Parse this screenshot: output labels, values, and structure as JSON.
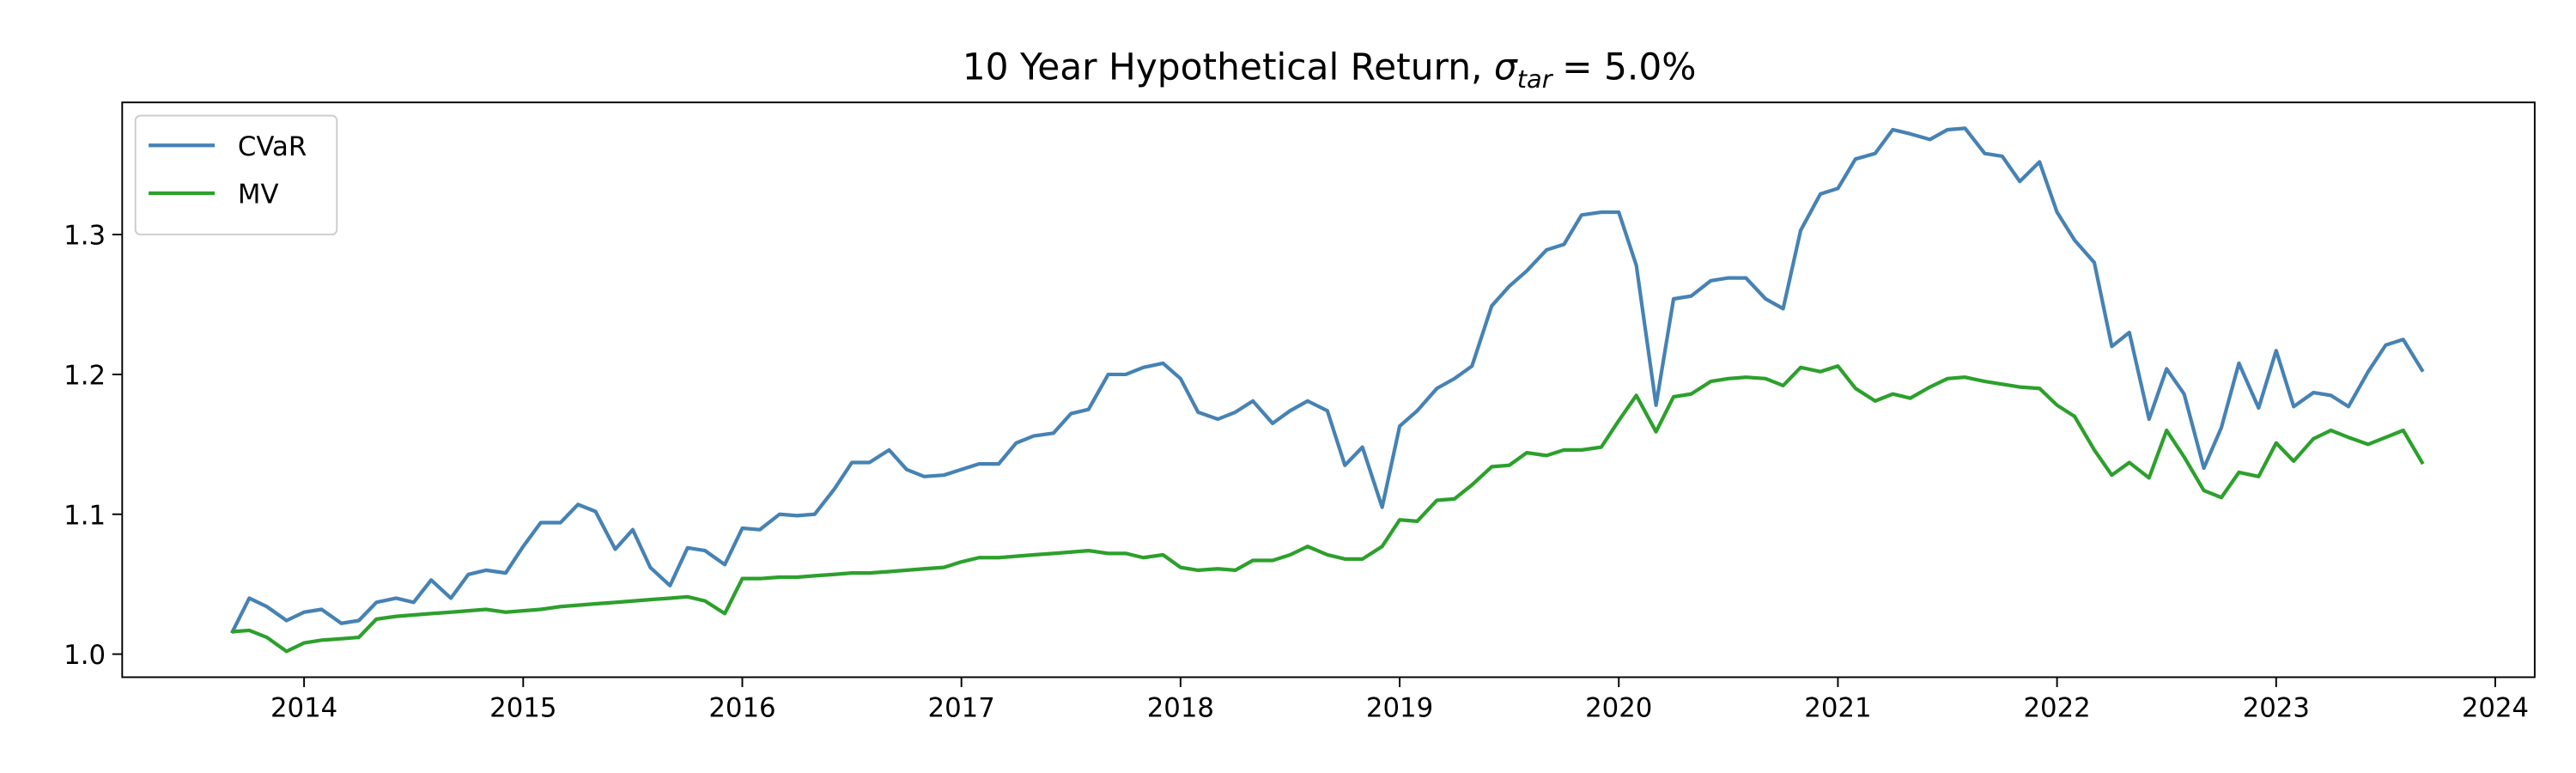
{
  "chart_data": {
    "type": "line",
    "title": {
      "text": "10 Year Hypothetical Return,",
      "symbol": "σ",
      "subscript": "tar",
      "suffix": "= 5.0%"
    },
    "x": [
      2013.67,
      2013.75,
      2013.83,
      2013.92,
      2014.0,
      2014.08,
      2014.17,
      2014.25,
      2014.33,
      2014.42,
      2014.5,
      2014.58,
      2014.67,
      2014.75,
      2014.83,
      2014.92,
      2015.0,
      2015.08,
      2015.17,
      2015.25,
      2015.33,
      2015.42,
      2015.5,
      2015.58,
      2015.67,
      2015.75,
      2015.83,
      2015.92,
      2016.0,
      2016.08,
      2016.17,
      2016.25,
      2016.33,
      2016.42,
      2016.5,
      2016.58,
      2016.67,
      2016.75,
      2016.83,
      2016.92,
      2017.0,
      2017.08,
      2017.17,
      2017.25,
      2017.33,
      2017.42,
      2017.5,
      2017.58,
      2017.67,
      2017.75,
      2017.83,
      2017.92,
      2018.0,
      2018.08,
      2018.17,
      2018.25,
      2018.33,
      2018.42,
      2018.5,
      2018.58,
      2018.67,
      2018.75,
      2018.83,
      2018.92,
      2019.0,
      2019.08,
      2019.17,
      2019.25,
      2019.33,
      2019.42,
      2019.5,
      2019.58,
      2019.67,
      2019.75,
      2019.83,
      2019.92,
      2020.0,
      2020.08,
      2020.17,
      2020.25,
      2020.33,
      2020.42,
      2020.5,
      2020.58,
      2020.67,
      2020.75,
      2020.83,
      2020.92,
      2021.0,
      2021.08,
      2021.17,
      2021.25,
      2021.33,
      2021.42,
      2021.5,
      2021.58,
      2021.67,
      2021.75,
      2021.83,
      2021.92,
      2022.0,
      2022.08,
      2022.17,
      2022.25,
      2022.33,
      2022.42,
      2022.5,
      2022.58,
      2022.67,
      2022.75,
      2022.83,
      2022.92,
      2023.0,
      2023.08,
      2023.17,
      2023.25,
      2023.33,
      2023.42,
      2023.5,
      2023.58,
      2023.67
    ],
    "series": [
      {
        "name": "CVaR",
        "color": "#4682b4",
        "values": [
          1.015,
          1.04,
          1.034,
          1.024,
          1.03,
          1.032,
          1.022,
          1.024,
          1.037,
          1.04,
          1.037,
          1.053,
          1.04,
          1.057,
          1.06,
          1.058,
          1.077,
          1.094,
          1.094,
          1.107,
          1.102,
          1.075,
          1.089,
          1.062,
          1.049,
          1.076,
          1.074,
          1.064,
          1.09,
          1.089,
          1.1,
          1.099,
          1.1,
          1.118,
          1.137,
          1.137,
          1.146,
          1.132,
          1.127,
          1.128,
          1.132,
          1.136,
          1.136,
          1.151,
          1.156,
          1.158,
          1.172,
          1.175,
          1.2,
          1.2,
          1.205,
          1.208,
          1.197,
          1.173,
          1.168,
          1.173,
          1.181,
          1.165,
          1.174,
          1.181,
          1.174,
          1.135,
          1.148,
          1.105,
          1.163,
          1.174,
          1.19,
          1.197,
          1.206,
          1.249,
          1.263,
          1.274,
          1.289,
          1.293,
          1.314,
          1.316,
          1.316,
          1.278,
          1.178,
          1.254,
          1.256,
          1.267,
          1.269,
          1.269,
          1.254,
          1.247,
          1.303,
          1.329,
          1.333,
          1.354,
          1.358,
          1.375,
          1.372,
          1.368,
          1.375,
          1.376,
          1.358,
          1.356,
          1.338,
          1.352,
          1.316,
          1.296,
          1.28,
          1.22,
          1.23,
          1.168,
          1.204,
          1.186,
          1.133,
          1.162,
          1.208,
          1.176,
          1.217,
          1.177,
          1.187,
          1.185,
          1.177,
          1.202,
          1.221,
          1.225,
          1.202
        ]
      },
      {
        "name": "MV",
        "color": "#2ca02c",
        "values": [
          1.016,
          1.017,
          1.012,
          1.002,
          1.008,
          1.01,
          1.011,
          1.012,
          1.025,
          1.027,
          1.028,
          1.029,
          1.03,
          1.031,
          1.032,
          1.03,
          1.031,
          1.032,
          1.034,
          1.035,
          1.036,
          1.037,
          1.038,
          1.039,
          1.04,
          1.041,
          1.038,
          1.029,
          1.054,
          1.054,
          1.055,
          1.055,
          1.056,
          1.057,
          1.058,
          1.058,
          1.059,
          1.06,
          1.061,
          1.062,
          1.066,
          1.069,
          1.069,
          1.07,
          1.071,
          1.072,
          1.073,
          1.074,
          1.072,
          1.072,
          1.069,
          1.071,
          1.062,
          1.06,
          1.061,
          1.06,
          1.067,
          1.067,
          1.071,
          1.077,
          1.071,
          1.068,
          1.068,
          1.077,
          1.096,
          1.095,
          1.11,
          1.111,
          1.121,
          1.134,
          1.135,
          1.144,
          1.142,
          1.146,
          1.146,
          1.148,
          1.167,
          1.185,
          1.159,
          1.184,
          1.186,
          1.195,
          1.197,
          1.198,
          1.197,
          1.192,
          1.205,
          1.202,
          1.206,
          1.19,
          1.181,
          1.186,
          1.183,
          1.191,
          1.197,
          1.198,
          1.195,
          1.193,
          1.191,
          1.19,
          1.178,
          1.17,
          1.146,
          1.128,
          1.137,
          1.126,
          1.16,
          1.141,
          1.117,
          1.112,
          1.13,
          1.127,
          1.151,
          1.138,
          1.154,
          1.16,
          1.155,
          1.15,
          1.155,
          1.16,
          1.136
        ]
      }
    ],
    "xlim": [
      2013.17,
      2024.18
    ],
    "xticks": [
      2014,
      2015,
      2016,
      2017,
      2018,
      2019,
      2020,
      2021,
      2022,
      2023,
      2024
    ],
    "ylim": [
      0.9835,
      1.3945
    ],
    "yticks": [
      {
        "value": 1,
        "label": "1.0"
      },
      1.1,
      1.2,
      1.3
    ],
    "grid": false,
    "legend": "upper-left"
  }
}
